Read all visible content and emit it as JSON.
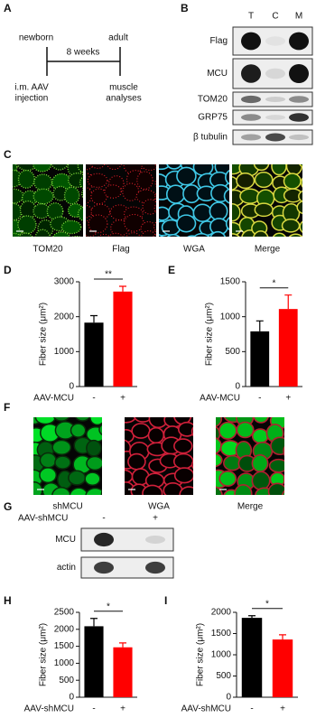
{
  "panel_a": {
    "panel_label": "A",
    "start": "newborn",
    "end": "adult",
    "duration": "8 weeks",
    "start_event": [
      "i.m. AAV",
      "injection"
    ],
    "end_event": [
      "muscle",
      "analyses"
    ]
  },
  "panel_b": {
    "panel_label": "B",
    "lanes": [
      "T",
      "C",
      "M"
    ],
    "rows": [
      "Flag",
      "MCU",
      "TOM20",
      "GRP75",
      "β tubulin"
    ]
  },
  "panel_c": {
    "panel_label": "C",
    "images": [
      "TOM20",
      "Flag",
      "WGA",
      "Merge"
    ]
  },
  "panel_f": {
    "panel_label": "F",
    "images": [
      "shMCU",
      "WGA",
      "Merge"
    ]
  },
  "panel_g": {
    "panel_label": "G",
    "condition": "AAV-shMCU",
    "lanes": [
      "-",
      "+"
    ],
    "rows": [
      "MCU",
      "actin"
    ]
  },
  "chart_data": [
    {
      "type": "bar",
      "panel_label": "D",
      "ylabel": "Fiber size (μm²)",
      "xlabel": "AAV-MCU",
      "categories": [
        "-",
        "+"
      ],
      "values": [
        1830,
        2720
      ],
      "errors": [
        200,
        150
      ],
      "colors": [
        "#000000",
        "#ff0000"
      ],
      "ylim": [
        0,
        3000
      ],
      "yticks": [
        0,
        1000,
        2000,
        3000
      ],
      "annotation": "**"
    },
    {
      "type": "bar",
      "panel_label": "E",
      "ylabel": "Fiber size (μm²)",
      "xlabel": "AAV-MCU",
      "categories": [
        "-",
        "+"
      ],
      "values": [
        790,
        1110
      ],
      "errors": [
        150,
        200
      ],
      "colors": [
        "#000000",
        "#ff0000"
      ],
      "ylim": [
        0,
        1500
      ],
      "yticks": [
        0,
        500,
        1000,
        1500
      ],
      "annotation": "*"
    },
    {
      "type": "bar",
      "panel_label": "H",
      "ylabel": "Fiber size (μm²)",
      "xlabel": "AAV-shMCU",
      "categories": [
        "-",
        "+"
      ],
      "values": [
        2090,
        1470
      ],
      "errors": [
        230,
        130
      ],
      "colors": [
        "#000000",
        "#ff0000"
      ],
      "ylim": [
        0,
        2500
      ],
      "yticks": [
        0,
        500,
        1000,
        1500,
        2000,
        2500
      ],
      "annotation": "*"
    },
    {
      "type": "bar",
      "panel_label": "I",
      "ylabel": "Fiber size (μm²)",
      "xlabel": "AAV-shMCU",
      "categories": [
        "-",
        "+"
      ],
      "values": [
        1870,
        1360
      ],
      "errors": [
        50,
        110
      ],
      "colors": [
        "#000000",
        "#ff0000"
      ],
      "ylim": [
        0,
        2000
      ],
      "yticks": [
        0,
        500,
        1000,
        1500,
        2000
      ],
      "annotation": "*"
    }
  ]
}
